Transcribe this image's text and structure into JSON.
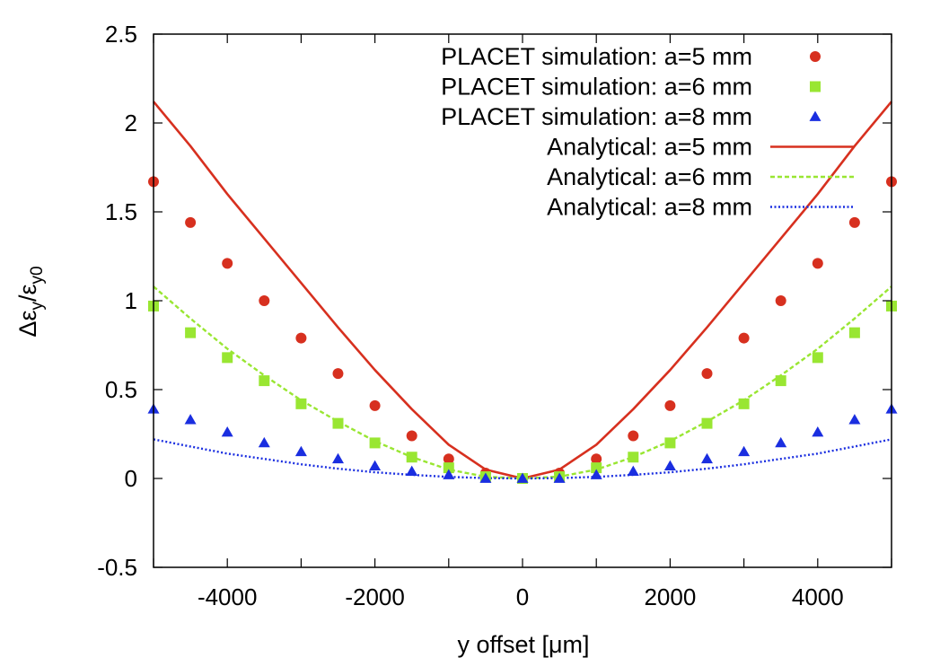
{
  "chart_data": {
    "type": "scatter",
    "title": "",
    "xlabel": "y offset [μm]",
    "ylabel": {
      "base": "Δε",
      "sub1": "y",
      "slash": "/ε",
      "sub2": "y0"
    },
    "xlim": [
      -5000,
      5000
    ],
    "ylim": [
      -0.5,
      2.5
    ],
    "xticks": [
      -4000,
      -2000,
      0,
      2000,
      4000
    ],
    "xtick_labels": [
      "-4000",
      "-2000",
      "0",
      "2000",
      "4000"
    ],
    "yticks": [
      -0.5,
      0,
      0.5,
      1,
      1.5,
      2,
      2.5
    ],
    "ytick_labels": [
      "-0.5",
      "0",
      "0.5",
      "1",
      "1.5",
      "2",
      "2.5"
    ],
    "legend_position": "top-right",
    "grid": false,
    "x": [
      -5000,
      -4500,
      -4000,
      -3500,
      -3000,
      -2500,
      -2000,
      -1500,
      -1000,
      -500,
      0,
      500,
      1000,
      1500,
      2000,
      2500,
      3000,
      3500,
      4000,
      4500,
      5000
    ],
    "series": [
      {
        "name": "PLACET simulation: a=5 mm",
        "kind": "points",
        "marker": "circle",
        "color": "#d7301f",
        "values": [
          1.67,
          1.44,
          1.21,
          1.0,
          0.79,
          0.59,
          0.41,
          0.24,
          0.11,
          0.03,
          0.0,
          0.03,
          0.11,
          0.24,
          0.41,
          0.59,
          0.79,
          1.0,
          1.21,
          1.44,
          1.67
        ]
      },
      {
        "name": "PLACET simulation: a=6 mm",
        "kind": "points",
        "marker": "square",
        "color": "#99e632",
        "values": [
          0.97,
          0.82,
          0.68,
          0.55,
          0.42,
          0.31,
          0.2,
          0.12,
          0.06,
          0.01,
          0.0,
          0.01,
          0.06,
          0.12,
          0.2,
          0.31,
          0.42,
          0.55,
          0.68,
          0.82,
          0.97
        ]
      },
      {
        "name": "PLACET simulation: a=8 mm",
        "kind": "points",
        "marker": "triangle",
        "color": "#1a2ee0",
        "values": [
          0.39,
          0.33,
          0.26,
          0.2,
          0.15,
          0.11,
          0.07,
          0.04,
          0.02,
          0.0,
          0.0,
          0.0,
          0.02,
          0.04,
          0.07,
          0.11,
          0.15,
          0.2,
          0.26,
          0.33,
          0.39
        ]
      },
      {
        "name": "Analytical: a=5 mm",
        "kind": "line",
        "dash": "solid",
        "color": "#d7301f",
        "x": [
          -5000,
          -4500,
          -4000,
          -3500,
          -3000,
          -2500,
          -2000,
          -1500,
          -1000,
          -500,
          0,
          500,
          1000,
          1500,
          2000,
          2500,
          3000,
          3500,
          4000,
          4500,
          5000
        ],
        "values": [
          2.12,
          1.87,
          1.6,
          1.35,
          1.1,
          0.85,
          0.61,
          0.39,
          0.19,
          0.05,
          0.0,
          0.05,
          0.19,
          0.39,
          0.61,
          0.85,
          1.1,
          1.35,
          1.6,
          1.87,
          2.12
        ]
      },
      {
        "name": "Analytical: a=6 mm",
        "kind": "line",
        "dash": "dashed",
        "color": "#99e632",
        "x": [
          -5000,
          -4500,
          -4000,
          -3500,
          -3000,
          -2500,
          -2000,
          -1500,
          -1000,
          -500,
          0,
          500,
          1000,
          1500,
          2000,
          2500,
          3000,
          3500,
          4000,
          4500,
          5000
        ],
        "values": [
          1.08,
          0.9,
          0.73,
          0.58,
          0.44,
          0.32,
          0.21,
          0.12,
          0.05,
          0.01,
          0.0,
          0.01,
          0.05,
          0.12,
          0.21,
          0.32,
          0.44,
          0.58,
          0.73,
          0.9,
          1.08
        ]
      },
      {
        "name": "Analytical: a=8 mm",
        "kind": "line",
        "dash": "dotted",
        "color": "#1a2ee0",
        "x": [
          -5000,
          -4500,
          -4000,
          -3500,
          -3000,
          -2500,
          -2000,
          -1500,
          -1000,
          -500,
          0,
          500,
          1000,
          1500,
          2000,
          2500,
          3000,
          3500,
          4000,
          4500,
          5000
        ],
        "values": [
          0.22,
          0.18,
          0.14,
          0.11,
          0.08,
          0.055,
          0.035,
          0.02,
          0.009,
          0.002,
          0.0,
          0.002,
          0.009,
          0.02,
          0.035,
          0.055,
          0.08,
          0.11,
          0.14,
          0.18,
          0.22
        ]
      }
    ]
  }
}
